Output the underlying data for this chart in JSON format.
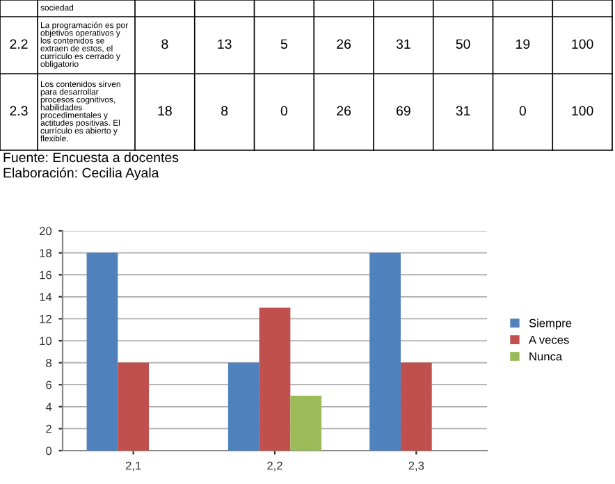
{
  "chart_data": [
    {
      "type": "other",
      "annotations": [
        "sociedad",
        "2.2",
        "La programación es por\nobjetivos operativos y\nlos contenidos se\nextraen de estos, el\ncurrículo es cerrado y\nobligatorio",
        "8",
        "13",
        "5",
        "26",
        "31",
        "50",
        "19",
        "100",
        "2.3",
        "Los contenidos sirven\npara desarrollar\nprocesos cognitivos,\nhabilidades\nprocedimentales y\nactitudes positivas. El\ncurrículo es abierto y\nflexible.",
        "18",
        "8",
        "0",
        "26",
        "69",
        "31",
        "0",
        "100",
        "Fuente: Encuesta a docentes",
        "Elaboración: Cecilia Ayala"
      ]
    },
    {
      "type": "bar",
      "categories": [
        "2,1",
        "2,2",
        "2,3"
      ],
      "series": [
        {
          "name": "Siempre",
          "color": "#4f81bd",
          "values": [
            18,
            8,
            18
          ]
        },
        {
          "name": "A veces",
          "color": "#c0504d",
          "values": [
            8,
            13,
            8
          ]
        },
        {
          "name": "Nunca",
          "color": "#9bbb59",
          "values": [
            0,
            5,
            0
          ]
        }
      ],
      "ylim": [
        0,
        20
      ],
      "yticks": [
        0,
        2,
        4,
        6,
        8,
        10,
        12,
        14,
        16,
        18,
        20
      ],
      "grid": "y",
      "legend": "right"
    }
  ]
}
